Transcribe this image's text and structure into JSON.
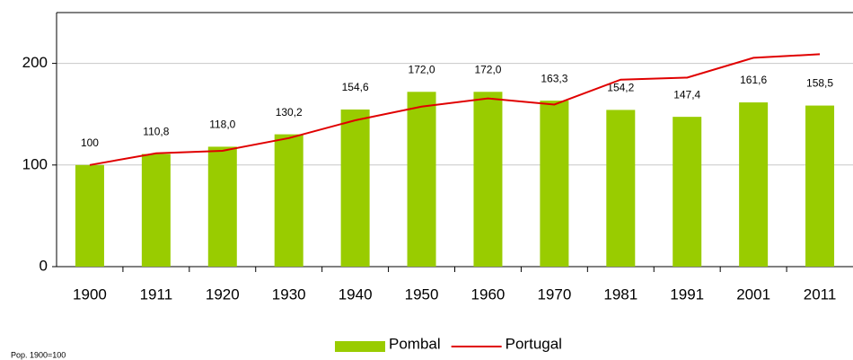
{
  "chart_data": {
    "type": "bar",
    "note": "Pop. 1900=100",
    "categories": [
      "1900",
      "1911",
      "1920",
      "1930",
      "1940",
      "1950",
      "1960",
      "1970",
      "1981",
      "1991",
      "2001",
      "2011"
    ],
    "series": [
      {
        "name": "Pombal",
        "type": "bar",
        "color": "#99cc00",
        "values": [
          100,
          110.8,
          118.0,
          130.2,
          154.6,
          172.0,
          172.0,
          163.3,
          154.2,
          147.4,
          161.6,
          158.5
        ],
        "value_labels": [
          "100",
          "110,8",
          "118,0",
          "130,2",
          "154,6",
          "172,0",
          "172,0",
          "163,3",
          "154,2",
          "147,4",
          "161,6",
          "158,5"
        ]
      },
      {
        "name": "Portugal",
        "type": "line",
        "color": "#e00000",
        "values": [
          100,
          111.5,
          114,
          126.5,
          144,
          157.5,
          165.5,
          159.5,
          184,
          186,
          205.5,
          209
        ]
      }
    ],
    "ylim": [
      0,
      250
    ],
    "yticks": [
      0,
      100,
      200
    ],
    "grid": true,
    "legend": "bottom"
  }
}
